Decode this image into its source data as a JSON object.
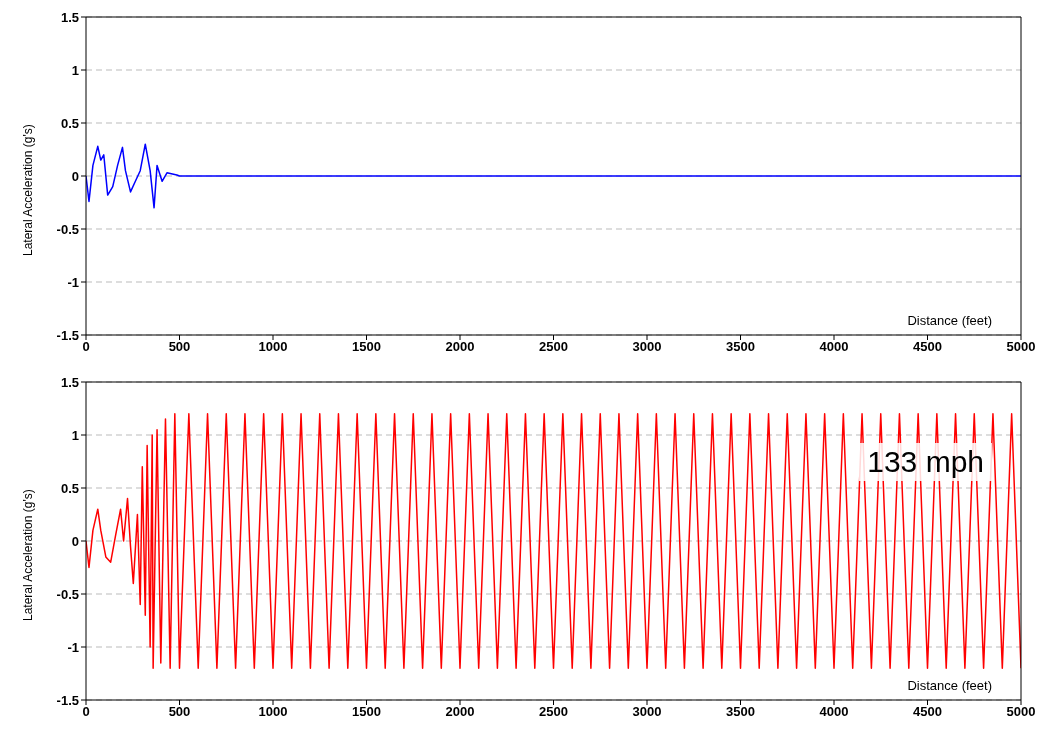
{
  "chart_data": [
    {
      "type": "line",
      "ylabel": "Lateral Acceleration (g's)",
      "xlabel": "Distance (feet)",
      "xlim": [
        0,
        5000
      ],
      "xticks": [
        0,
        500,
        1000,
        1500,
        2000,
        2500,
        3000,
        3500,
        4000,
        4500,
        5000
      ],
      "ylim": [
        -1.5,
        1.5
      ],
      "yticks": [
        -1.5,
        -1,
        -0.5,
        0,
        0.5,
        1,
        1.5
      ],
      "grid": "y",
      "legend": false,
      "marker": "none",
      "line_style": "solid",
      "series": [
        {
          "color": "#0000ff",
          "x": [
            0,
            16,
            37,
            63,
            79,
            95,
            116,
            143,
            169,
            195,
            211,
            238,
            264,
            290,
            317,
            343,
            364,
            380,
            407,
            433,
            486,
            500,
            5000
          ],
          "values": [
            0,
            -0.24,
            0.1,
            0.28,
            0.15,
            0.2,
            -0.18,
            -0.1,
            0.1,
            0.27,
            0.05,
            -0.15,
            -0.05,
            0.05,
            0.3,
            0.05,
            -0.3,
            0.1,
            -0.05,
            0.03,
            0.01,
            0,
            0
          ]
        }
      ]
    },
    {
      "type": "line",
      "ylabel": "Lateral Acceleration (g's)",
      "xlabel": "Distance (feet)",
      "annotations": [
        "133 mph"
      ],
      "xlim": [
        0,
        5000
      ],
      "xticks": [
        0,
        500,
        1000,
        1500,
        2000,
        2500,
        3000,
        3500,
        4000,
        4500,
        5000
      ],
      "ylim": [
        -1.5,
        1.5
      ],
      "yticks": [
        -1.5,
        -1,
        -0.5,
        0,
        0.5,
        1,
        1.5
      ],
      "grid": "y",
      "legend": false,
      "marker": "none",
      "line_style": "solid",
      "series": [
        {
          "color": "#ff0000",
          "x": [
            0,
            16,
            37,
            63,
            79,
            106,
            132,
            158,
            185,
            201,
            222,
            238,
            253,
            275,
            290,
            301,
            317,
            327,
            343,
            354,
            359,
            380,
            400,
            425,
            450,
            475,
            500,
            550,
            600,
            650,
            700,
            750,
            800,
            850,
            900,
            950,
            1000,
            1050,
            1100,
            1150,
            1200,
            1250,
            1300,
            1350,
            1400,
            1450,
            1500,
            1550,
            1600,
            1650,
            1700,
            1750,
            1800,
            1850,
            1900,
            1950,
            2000,
            2050,
            2100,
            2150,
            2200,
            2250,
            2300,
            2350,
            2400,
            2450,
            2500,
            2550,
            2600,
            2650,
            2700,
            2750,
            2800,
            2850,
            2900,
            2950,
            3000,
            3050,
            3100,
            3150,
            3200,
            3250,
            3300,
            3350,
            3400,
            3450,
            3500,
            3550,
            3600,
            3650,
            3700,
            3750,
            3800,
            3850,
            3900,
            3950,
            4000,
            4050,
            4100,
            4150,
            4200,
            4250,
            4300,
            4350,
            4400,
            4450,
            4500,
            4550,
            4600,
            4650,
            4700,
            4750,
            4800,
            4850,
            4900,
            4950,
            5000
          ],
          "values": [
            0,
            -0.25,
            0.1,
            0.3,
            0.1,
            -0.15,
            -0.2,
            0.05,
            0.3,
            0,
            0.4,
            -0.05,
            -0.4,
            0.25,
            -0.6,
            0.7,
            -0.7,
            0.9,
            -1.0,
            1.0,
            -1.2,
            1.05,
            -1.15,
            1.15,
            -1.2,
            1.2,
            -1.2,
            1.2,
            -1.2,
            1.2,
            -1.2,
            1.2,
            -1.2,
            1.2,
            -1.2,
            1.2,
            -1.2,
            1.2,
            -1.2,
            1.2,
            -1.2,
            1.2,
            -1.2,
            1.2,
            -1.2,
            1.2,
            -1.2,
            1.2,
            -1.2,
            1.2,
            -1.2,
            1.2,
            -1.2,
            1.2,
            -1.2,
            1.2,
            -1.2,
            1.2,
            -1.2,
            1.2,
            -1.2,
            1.2,
            -1.2,
            1.2,
            -1.2,
            1.2,
            -1.2,
            1.2,
            -1.2,
            1.2,
            -1.2,
            1.2,
            -1.2,
            1.2,
            -1.2,
            1.2,
            -1.2,
            1.2,
            -1.2,
            1.2,
            -1.2,
            1.2,
            -1.2,
            1.2,
            -1.2,
            1.2,
            -1.2,
            1.2,
            -1.2,
            1.2,
            -1.2,
            1.2,
            -1.2,
            1.2,
            -1.2,
            1.2,
            -1.2,
            1.2,
            -1.2,
            1.2,
            -1.2,
            1.2,
            -1.2,
            1.2,
            -1.2,
            1.2,
            -1.2,
            1.2,
            -1.2,
            1.2,
            -1.2,
            1.2,
            -1.2,
            1.2,
            -1.2,
            1.2,
            -1.2
          ]
        }
      ]
    }
  ]
}
